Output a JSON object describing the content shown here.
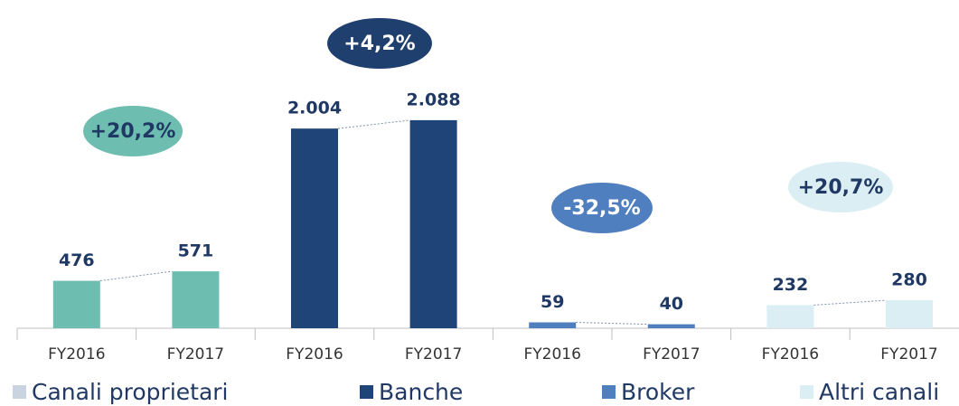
{
  "chart_data": {
    "type": "bar",
    "categories": [
      "FY2016",
      "FY2017",
      "FY2016",
      "FY2017",
      "FY2016",
      "FY2017",
      "FY2016",
      "FY2017"
    ],
    "series": [
      {
        "name": "Canali proprietari",
        "color": "#6dbdb0",
        "legend_color": "#c9d4e0",
        "values": [
          476,
          571,
          null,
          null,
          null,
          null,
          null,
          null
        ],
        "value_labels": [
          "476",
          "571",
          null,
          null,
          null,
          null,
          null,
          null
        ],
        "growth": "+20,2%",
        "growth_color": "#6dbdb0"
      },
      {
        "name": "Banche",
        "color": "#1f4477",
        "legend_color": "#1f4477",
        "values": [
          null,
          null,
          2004,
          2088,
          null,
          null,
          null,
          null
        ],
        "value_labels": [
          null,
          null,
          "2.004",
          "2.088",
          null,
          null,
          null,
          null
        ],
        "growth": "+4,2%",
        "growth_color": "#1f3f6e"
      },
      {
        "name": "Broker",
        "color": "#4f7fbf",
        "legend_color": "#4f7fbf",
        "values": [
          null,
          null,
          null,
          null,
          59,
          40,
          null,
          null
        ],
        "value_labels": [
          null,
          null,
          null,
          null,
          "59",
          "40",
          null,
          null
        ],
        "growth": "-32,5%",
        "growth_color": "#4f7fbf"
      },
      {
        "name": "Altri canali",
        "color": "#daeef3",
        "legend_color": "#daeef3",
        "values": [
          null,
          null,
          null,
          null,
          null,
          null,
          232,
          280
        ],
        "value_labels": [
          null,
          null,
          null,
          null,
          null,
          null,
          "232",
          "280"
        ],
        "growth": "+20,7%",
        "growth_color": "#daeef3"
      }
    ]
  }
}
